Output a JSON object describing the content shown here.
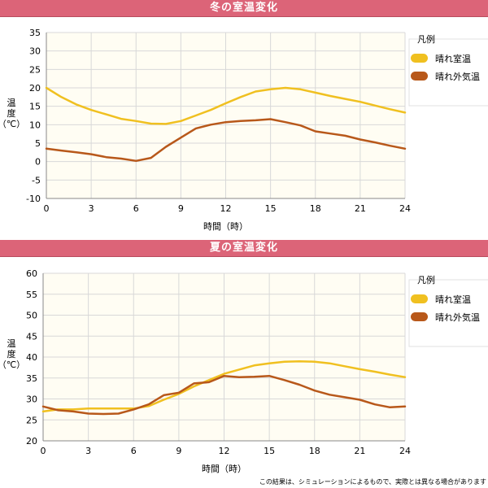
{
  "footer": "この結果は、シミュレーションによるもので、実際とは異なる場合があります",
  "chart_data": [
    {
      "type": "line",
      "title": "冬の室温変化",
      "xlabel": "時間（時）",
      "ylabel": "温度（℃）",
      "xlim": [
        0,
        24
      ],
      "ylim": [
        -10,
        35
      ],
      "xticks": [
        0,
        3,
        6,
        9,
        12,
        15,
        18,
        21,
        24
      ],
      "yticks": [
        -10,
        -5,
        0,
        5,
        10,
        15,
        20,
        25,
        30,
        35
      ],
      "grid": true,
      "legend_title": "凡例",
      "legend_position": "right",
      "x": [
        0,
        1,
        2,
        3,
        4,
        5,
        6,
        7,
        8,
        9,
        10,
        11,
        12,
        13,
        14,
        15,
        16,
        17,
        18,
        19,
        20,
        21,
        22,
        23,
        24
      ],
      "series": [
        {
          "name": "晴れ室温",
          "color": "#f0c020",
          "values": [
            20,
            17.5,
            15.5,
            14,
            12.8,
            11.6,
            11,
            10.3,
            10.2,
            11,
            12.5,
            14,
            15.8,
            17.5,
            19,
            19.6,
            20,
            19.6,
            18.7,
            17.8,
            17,
            16.2,
            15.2,
            14.2,
            13.3
          ]
        },
        {
          "name": "晴れ外気温",
          "color": "#b8581a",
          "values": [
            3.5,
            3,
            2.5,
            2,
            1.2,
            0.8,
            0.2,
            1,
            4,
            6.5,
            9,
            10,
            10.7,
            11,
            11.2,
            11.5,
            10.7,
            9.8,
            8.2,
            7.6,
            7,
            6,
            5.2,
            4.3,
            3.5
          ]
        }
      ]
    },
    {
      "type": "line",
      "title": "夏の室温変化",
      "xlabel": "時間（時）",
      "ylabel": "温度（℃）",
      "xlim": [
        0,
        24
      ],
      "ylim": [
        20,
        60
      ],
      "xticks": [
        0,
        3,
        6,
        9,
        12,
        15,
        18,
        21,
        24
      ],
      "yticks": [
        20,
        25,
        30,
        35,
        40,
        45,
        50,
        55,
        60
      ],
      "grid": true,
      "legend_title": "凡例",
      "legend_position": "right",
      "x": [
        0,
        1,
        2,
        3,
        4,
        5,
        6,
        7,
        8,
        9,
        10,
        11,
        12,
        13,
        14,
        15,
        16,
        17,
        18,
        19,
        20,
        21,
        22,
        23,
        24
      ],
      "series": [
        {
          "name": "晴れ室温",
          "color": "#f0c020",
          "values": [
            27,
            27.5,
            27.5,
            27.7,
            27.7,
            27.7,
            27.7,
            28.3,
            29.8,
            31.2,
            33,
            34.5,
            36,
            37,
            38,
            38.5,
            38.9,
            39,
            38.9,
            38.5,
            37.8,
            37.1,
            36.5,
            35.8,
            35.2
          ]
        },
        {
          "name": "晴れ外気温",
          "color": "#b8581a",
          "values": [
            28.2,
            27.3,
            27,
            26.5,
            26.4,
            26.5,
            27.5,
            28.7,
            30.9,
            31.5,
            33.7,
            34,
            35.5,
            35.2,
            35.3,
            35.5,
            34.5,
            33.4,
            32,
            31,
            30.4,
            29.8,
            28.7,
            28,
            28.2
          ]
        }
      ]
    }
  ]
}
